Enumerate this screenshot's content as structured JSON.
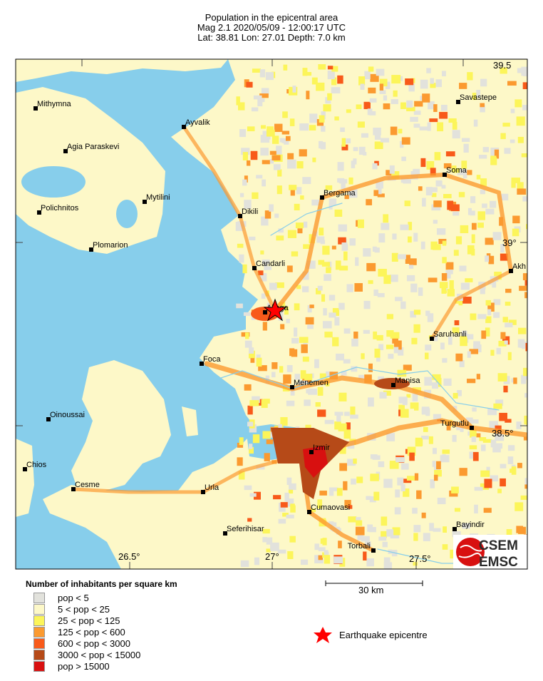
{
  "header": {
    "title": "Population in the epicentral area",
    "event_line": "Mag 2.1  2020/05/09 - 12:00:17 UTC",
    "location_line": "Lat: 38.81    Lon: 27.01     Depth:  7.0 km"
  },
  "map": {
    "colors": {
      "sea": "#87ceeb",
      "land_low": "#e2e2dc"
    },
    "axis_labels": {
      "lat_39_5": "39.5",
      "lat_39": "39°",
      "lat_38_5": "38.5°",
      "lon_26_5": "26.5°",
      "lon_27": "27°",
      "lon_27_5": "27.5°"
    },
    "cities": [
      {
        "name": "Mithymna"
      },
      {
        "name": "Agia Paraskevi"
      },
      {
        "name": "Mytilini"
      },
      {
        "name": "Polichnitos"
      },
      {
        "name": "Plomarion"
      },
      {
        "name": "Ayvalik"
      },
      {
        "name": "Dikili"
      },
      {
        "name": "Bergama"
      },
      {
        "name": "Soma"
      },
      {
        "name": "Savastepe"
      },
      {
        "name": "Candarli"
      },
      {
        "name": "Aliaga"
      },
      {
        "name": "Akh"
      },
      {
        "name": "Saruhanli"
      },
      {
        "name": "Foca"
      },
      {
        "name": "Menemen"
      },
      {
        "name": "Manisa"
      },
      {
        "name": "Turgutlu"
      },
      {
        "name": "Oinoussai"
      },
      {
        "name": "Chios"
      },
      {
        "name": "Izmir"
      },
      {
        "name": "Cesme"
      },
      {
        "name": "Urla"
      },
      {
        "name": "Cumaovasi"
      },
      {
        "name": "Bayindir"
      },
      {
        "name": "Seferihisar"
      },
      {
        "name": "Torbali"
      }
    ],
    "epicentre_color": "#ff0000",
    "logo": {
      "line1": "CSEM",
      "line2": "EMSC"
    }
  },
  "legend": {
    "title": "Number of inhabitants per square km",
    "items": [
      {
        "label": "pop < 5",
        "color": "#e2e2dc"
      },
      {
        "label": "5 < pop < 25",
        "color": "#fdf8c8"
      },
      {
        "label": "25 < pop < 125",
        "color": "#fcf55a"
      },
      {
        "label": "125 < pop < 600",
        "color": "#fb9a30"
      },
      {
        "label": "600 < pop < 3000",
        "color": "#f85a1a"
      },
      {
        "label": "3000 < pop < 15000",
        "color": "#b64a18"
      },
      {
        "label": "pop > 15000",
        "color": "#d81010"
      }
    ],
    "scale_label": "30 km",
    "epicentre_label": "Earthquake epicentre"
  }
}
